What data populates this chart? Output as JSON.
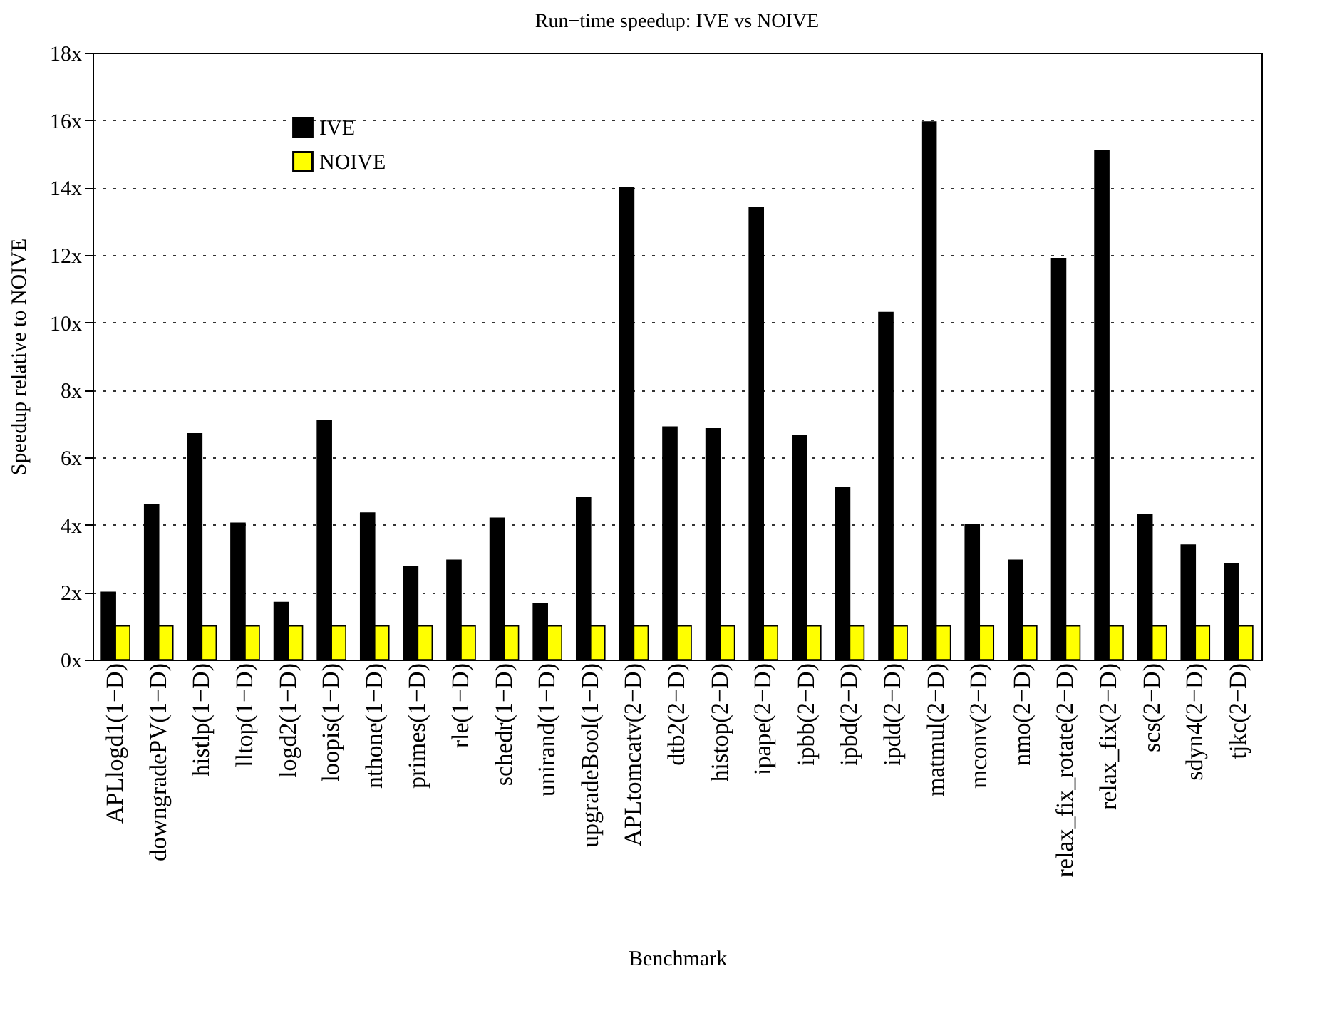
{
  "chart_data": {
    "type": "bar",
    "title": "Run−time speedup: IVE vs NOIVE",
    "xlabel": "Benchmark",
    "ylabel": "Speedup relative to NOIVE",
    "categories": [
      "APLlogd1(1−D)",
      "downgradePV(1−D)",
      "histlp(1−D)",
      "lltop(1−D)",
      "logd2(1−D)",
      "loopis(1−D)",
      "nthone(1−D)",
      "primes(1−D)",
      "rle(1−D)",
      "schedr(1−D)",
      "unirand(1−D)",
      "upgradeBool(1−D)",
      "APLtomcatv(2−D)",
      "dtb2(2−D)",
      "histop(2−D)",
      "ipape(2−D)",
      "ipbb(2−D)",
      "ipbd(2−D)",
      "ipdd(2−D)",
      "matmul(2−D)",
      "mconv(2−D)",
      "nmo(2−D)",
      "relax_fix_rotate(2−D)",
      "relax_fix(2−D)",
      "scs(2−D)",
      "sdyn4(2−D)",
      "tjkc(2−D)"
    ],
    "series": [
      {
        "name": "IVE",
        "color": "#000000",
        "values": [
          2.0,
          4.6,
          6.7,
          4.05,
          1.7,
          7.1,
          4.35,
          2.75,
          2.95,
          4.2,
          1.65,
          4.8,
          14.0,
          6.9,
          6.85,
          13.4,
          6.65,
          5.1,
          10.3,
          15.95,
          4.0,
          2.95,
          11.9,
          15.1,
          4.3,
          3.4,
          2.85
        ]
      },
      {
        "name": "NOIVE",
        "color": "#ffff00",
        "values": [
          1,
          1,
          1,
          1,
          1,
          1,
          1,
          1,
          1,
          1,
          1,
          1,
          1,
          1,
          1,
          1,
          1,
          1,
          1,
          1,
          1,
          1,
          1,
          1,
          1,
          1,
          1
        ]
      }
    ],
    "ylim": [
      0,
      18
    ],
    "yticks": [
      {
        "value": 0,
        "label": "0x"
      },
      {
        "value": 2,
        "label": "2x"
      },
      {
        "value": 4,
        "label": "4x"
      },
      {
        "value": 6,
        "label": "6x"
      },
      {
        "value": 8,
        "label": "8x"
      },
      {
        "value": 10,
        "label": "10x"
      },
      {
        "value": 12,
        "label": "12x"
      },
      {
        "value": 14,
        "label": "14x"
      },
      {
        "value": 16,
        "label": "16x"
      },
      {
        "value": 18,
        "label": "18x"
      }
    ],
    "grid": "y",
    "legend": "top left"
  }
}
